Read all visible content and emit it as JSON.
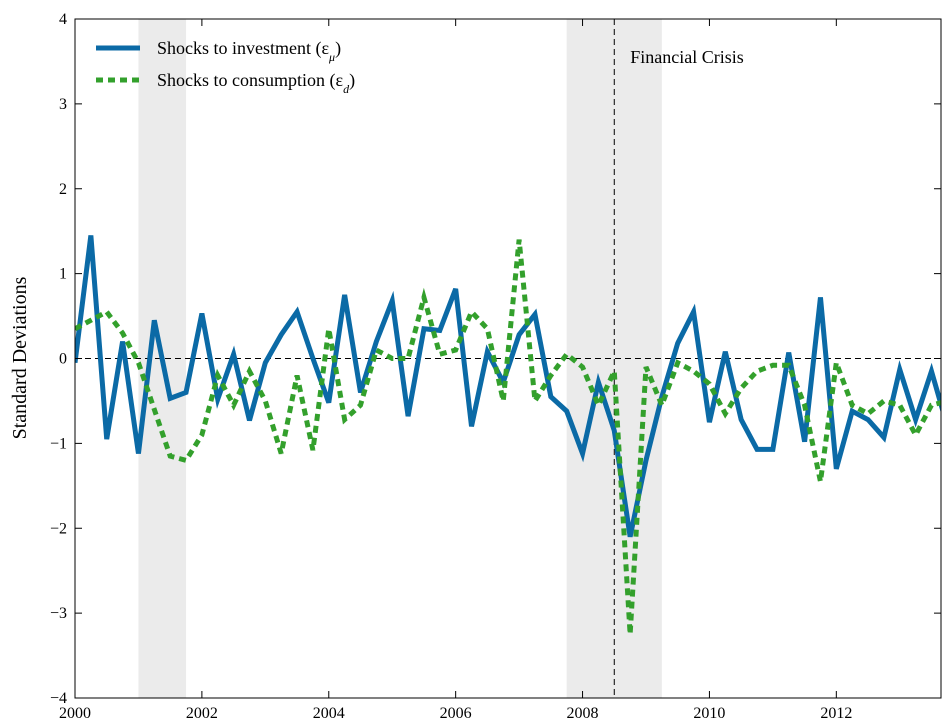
{
  "chart_data": {
    "type": "line",
    "ylabel": "Standard Deviations",
    "annotation": "Financial Crisis",
    "event_x": 2008.5,
    "shaded": [
      [
        2001,
        2001.75
      ],
      [
        2007.75,
        2009.25
      ]
    ],
    "xlim": [
      2000,
      2013.65
    ],
    "ylim": [
      -4,
      4
    ],
    "xticks": [
      2000,
      2002,
      2004,
      2006,
      2008,
      2010,
      2012
    ],
    "yticks": [
      {
        "value": -4,
        "label": "−4"
      },
      {
        "value": -3,
        "label": "−3"
      },
      {
        "value": -2,
        "label": "−2"
      },
      {
        "value": -1,
        "label": "−1"
      },
      0,
      1,
      2,
      3,
      4
    ],
    "x": [
      2000,
      2000.25,
      2000.5,
      2000.75,
      2001,
      2001.25,
      2001.5,
      2001.75,
      2002,
      2002.25,
      2002.5,
      2002.75,
      2003,
      2003.25,
      2003.5,
      2003.75,
      2004,
      2004.25,
      2004.5,
      2004.75,
      2005,
      2005.25,
      2005.5,
      2005.75,
      2006,
      2006.25,
      2006.5,
      2006.75,
      2007,
      2007.25,
      2007.5,
      2007.75,
      2008,
      2008.25,
      2008.5,
      2008.75,
      2009,
      2009.25,
      2009.5,
      2009.75,
      2010,
      2010.25,
      2010.5,
      2010.75,
      2011,
      2011.25,
      2011.5,
      2011.75,
      2012,
      2012.25,
      2012.5,
      2012.75,
      2013,
      2013.25,
      2013.5,
      2013.75
    ],
    "series": [
      {
        "name": "Shocks to investment (ε_μ)",
        "color": "#0b6aa6",
        "dash": "solid",
        "values": [
          -0.05,
          1.45,
          -0.95,
          0.2,
          -1.12,
          0.45,
          -0.47,
          -0.4,
          0.53,
          -0.48,
          0.05,
          -0.73,
          -0.05,
          0.28,
          0.55,
          0.0,
          -0.52,
          0.75,
          -0.4,
          0.2,
          0.68,
          -0.68,
          0.35,
          0.33,
          0.82,
          -0.8,
          0.08,
          -0.28,
          0.28,
          0.52,
          -0.45,
          -0.62,
          -1.12,
          -0.28,
          -0.85,
          -2.1,
          -1.2,
          -0.45,
          0.18,
          0.55,
          -0.75,
          0.08,
          -0.72,
          -1.07,
          -1.07,
          0.07,
          -0.98,
          0.72,
          -1.3,
          -0.62,
          -0.72,
          -0.93,
          -0.13,
          -0.72,
          -0.15,
          -0.8
        ]
      },
      {
        "name": "Shocks to consumption (ε_d)",
        "color": "#33a02c",
        "dash": "dashed",
        "values": [
          0.35,
          0.45,
          0.55,
          0.3,
          -0.05,
          -0.6,
          -1.15,
          -1.2,
          -0.9,
          -0.2,
          -0.55,
          -0.15,
          -0.5,
          -1.12,
          -0.2,
          -1.08,
          0.35,
          -0.72,
          -0.55,
          0.1,
          0.0,
          0.0,
          0.72,
          0.05,
          0.1,
          0.55,
          0.35,
          -0.5,
          1.4,
          -0.5,
          -0.2,
          0.05,
          -0.1,
          -0.55,
          -0.15,
          -3.25,
          -0.1,
          -0.55,
          -0.05,
          -0.15,
          -0.3,
          -0.65,
          -0.35,
          -0.15,
          -0.08,
          -0.08,
          -0.55,
          -1.45,
          -0.05,
          -0.55,
          -0.65,
          -0.5,
          -0.55,
          -0.9,
          -0.55,
          -0.5
        ]
      }
    ]
  }
}
